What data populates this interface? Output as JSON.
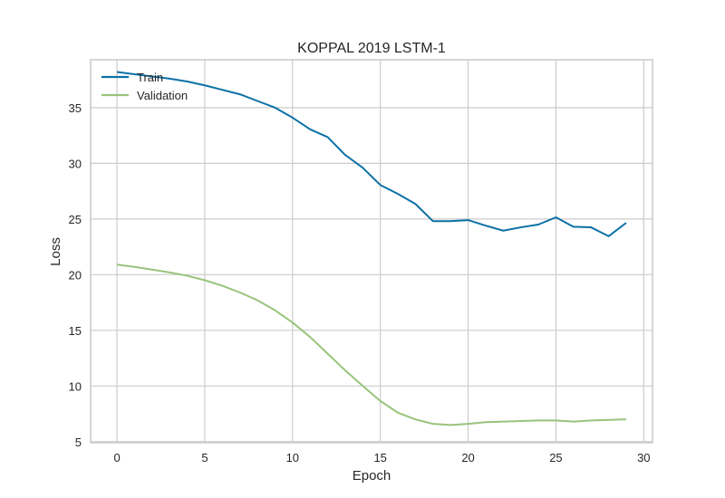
{
  "chart_data": {
    "type": "line",
    "title": "KOPPAL 2019 LSTM-1",
    "xlabel": "Epoch",
    "ylabel": "Loss",
    "xlim": [
      -1.5,
      30.5
    ],
    "ylim": [
      4.9,
      39.3
    ],
    "xticks": [
      0,
      5,
      10,
      15,
      20,
      25,
      30
    ],
    "yticks": [
      5,
      10,
      15,
      20,
      25,
      30,
      35
    ],
    "grid": true,
    "legend_position": "top-left",
    "series": [
      {
        "name": "Train",
        "color": "#0c71a6",
        "x": [
          0,
          1,
          2,
          3,
          4,
          5,
          6,
          7,
          8,
          9,
          10,
          11,
          12,
          13,
          14,
          15,
          16,
          17,
          18,
          19,
          20,
          21,
          22,
          23,
          24,
          25,
          26,
          27,
          28,
          29
        ],
        "values": [
          38.2,
          38.0,
          37.8,
          37.6,
          37.35,
          37.0,
          36.6,
          36.2,
          35.6,
          35.0,
          34.1,
          33.05,
          32.35,
          30.75,
          29.6,
          28.05,
          27.25,
          26.35,
          24.8,
          24.8,
          24.9,
          24.4,
          23.95,
          24.25,
          24.5,
          25.15,
          24.3,
          24.25,
          23.45,
          24.65
        ]
      },
      {
        "name": "Validation",
        "color": "#98c47b",
        "x": [
          0,
          1,
          2,
          3,
          4,
          5,
          6,
          7,
          8,
          9,
          10,
          11,
          12,
          13,
          14,
          15,
          16,
          17,
          18,
          19,
          20,
          21,
          22,
          23,
          24,
          25,
          26,
          27,
          28,
          29
        ],
        "values": [
          20.9,
          20.7,
          20.45,
          20.2,
          19.9,
          19.5,
          19.0,
          18.4,
          17.7,
          16.8,
          15.7,
          14.4,
          12.9,
          11.4,
          10.0,
          8.65,
          7.6,
          7.0,
          6.6,
          6.5,
          6.6,
          6.75,
          6.8,
          6.85,
          6.9,
          6.9,
          6.8,
          6.9,
          6.95,
          7.0
        ]
      }
    ]
  }
}
